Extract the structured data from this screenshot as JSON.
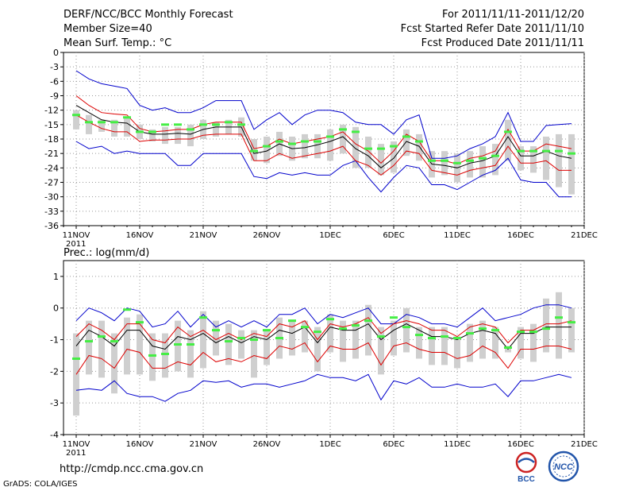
{
  "header": {
    "title": "DERF/NCC/BCC Monthly Forecast",
    "member_size": "Member Size=40",
    "variable": "Mean Surf. Temp.: °C",
    "period": "For 2011/11/11-2011/12/20",
    "started": "Fcst Started Refer Date 2011/11/10",
    "produced": "Fcst Produced Date 2011/11/11"
  },
  "footer": {
    "url": "http://cmdp.ncc.cma.gov.cn",
    "grads": "GrADS: COLA/IGES",
    "logo_bcc": "BCC",
    "logo_ncc": "NCC"
  },
  "colors": {
    "box": "#cfcfcf",
    "envelope": "#0000cc",
    "spread": "#dd0000",
    "mean": "#000000",
    "obs": "#44ee44",
    "grid": "#999999"
  },
  "chart_data": [
    {
      "type": "line",
      "title": "Mean Surf. Temp.: °C",
      "xlabel": "",
      "ylabel": "°C",
      "x_ticks": [
        {
          "day": 0,
          "label": "11NOV"
        },
        {
          "day": 5,
          "label": "16NOV"
        },
        {
          "day": 10,
          "label": "21NOV"
        },
        {
          "day": 15,
          "label": "26NOV"
        },
        {
          "day": 20,
          "label": "1DEC"
        },
        {
          "day": 25,
          "label": "6DEC"
        },
        {
          "day": 30,
          "label": "11DEC"
        },
        {
          "day": 35,
          "label": "16DEC"
        },
        {
          "day": 40,
          "label": "21DEC"
        }
      ],
      "year_label": "2011",
      "xlim": [
        -1,
        40
      ],
      "ylim": [
        -36,
        0
      ],
      "y_ticks": [
        0,
        -3,
        -6,
        -9,
        -12,
        -15,
        -18,
        -21,
        -24,
        -27,
        -30,
        -33,
        -36
      ],
      "series": [
        {
          "name": "ensemble max",
          "values": [
            -3.8,
            -5.5,
            -6.5,
            -7,
            -7.5,
            -11,
            -12,
            -11.5,
            -12.5,
            -12.5,
            -11.5,
            -10,
            -10,
            -10,
            -16,
            -14,
            -12.5,
            -15,
            -13,
            -12,
            -12,
            -12.5,
            -14.5,
            -15,
            -15,
            -17,
            -14,
            -13,
            -22,
            -22,
            -21.5,
            -20,
            -19,
            -17.5,
            -12.5,
            -18.5,
            -18.5,
            -15.2,
            -15,
            -14.8
          ]
        },
        {
          "name": "upper spread",
          "values": [
            -9,
            -11,
            -12.5,
            -12.8,
            -13,
            -15.8,
            -16.5,
            -16.3,
            -16,
            -16,
            -15,
            -14.5,
            -14.5,
            -14.5,
            -20,
            -19.5,
            -18,
            -19,
            -18.5,
            -18,
            -17.5,
            -16.5,
            -19,
            -20.5,
            -23,
            -20.5,
            -17,
            -18.5,
            -22.5,
            -22.5,
            -23.2,
            -22,
            -21.5,
            -20.5,
            -16,
            -20.5,
            -20.5,
            -19,
            -19.5,
            -20
          ]
        },
        {
          "name": "ensemble mean",
          "values": [
            -11,
            -12.5,
            -14,
            -14.5,
            -14.7,
            -16.5,
            -17,
            -17,
            -16.8,
            -17,
            -16,
            -15.5,
            -15.5,
            -15.5,
            -21,
            -20.5,
            -19,
            -20,
            -19.8,
            -19.2,
            -18.5,
            -17.5,
            -20,
            -21.5,
            -24,
            -22,
            -18.5,
            -19.5,
            -23.2,
            -23.5,
            -24,
            -23,
            -22.5,
            -21.5,
            -17.5,
            -21.5,
            -21.5,
            -20.5,
            -21.5,
            -22
          ]
        },
        {
          "name": "lower spread",
          "values": [
            -13,
            -14.5,
            -15.8,
            -16.5,
            -16.5,
            -18.5,
            -18.2,
            -18.2,
            -18,
            -18,
            -17.2,
            -17,
            -17,
            -17,
            -22.5,
            -22.5,
            -21,
            -22,
            -21.5,
            -21,
            -20.5,
            -19.5,
            -22.5,
            -23.5,
            -25.5,
            -23.5,
            -20.5,
            -21,
            -24.5,
            -25,
            -25.5,
            -24.5,
            -24,
            -23.5,
            -19.5,
            -23,
            -23,
            -22.5,
            -24.5,
            -24.5
          ]
        },
        {
          "name": "ensemble min",
          "values": [
            -18.5,
            -20,
            -19.5,
            -21,
            -20.5,
            -21,
            -21,
            -21,
            -23.5,
            -23.5,
            -21,
            -21,
            -21,
            -21,
            -25.8,
            -26.2,
            -25,
            -25.5,
            -25,
            -25.5,
            -25.5,
            -23.5,
            -22.5,
            -26,
            -29,
            -26,
            -23.5,
            -24,
            -27.5,
            -27.5,
            -28.5,
            -27,
            -25.5,
            -24.5,
            -22,
            -26.5,
            -27,
            -27,
            -30,
            -30
          ]
        },
        {
          "name": "box top",
          "values": [
            -12,
            -13,
            -14,
            -14,
            -13.5,
            -15,
            -16,
            -15.5,
            -15.5,
            -15,
            -14,
            -14.5,
            -14,
            -13.5,
            -18,
            -17.5,
            -16.5,
            -17.5,
            -17,
            -17,
            -16,
            -15,
            -15.5,
            -17.5,
            -19,
            -18.5,
            -16,
            -17,
            -20.5,
            -20.5,
            -21,
            -20.5,
            -19.5,
            -19,
            -14,
            -19.5,
            -19.5,
            -17.5,
            -17,
            -17
          ]
        },
        {
          "name": "box bottom",
          "values": [
            -16,
            -17,
            -16.5,
            -17.5,
            -17.5,
            -18,
            -18.5,
            -19,
            -19,
            -19.5,
            -18,
            -17.5,
            -17,
            -17.5,
            -22.5,
            -23,
            -21.5,
            -22.5,
            -22,
            -22,
            -22.5,
            -21,
            -24,
            -24,
            -25.5,
            -25,
            -21.5,
            -22.5,
            -26,
            -25.5,
            -27,
            -26,
            -26,
            -25.5,
            -22.5,
            -24.5,
            -25,
            -26.5,
            -28,
            -29.5
          ]
        },
        {
          "name": "observation",
          "values": [
            -13,
            -14.5,
            -14.5,
            -14.5,
            -13.5,
            -16.5,
            -16.5,
            -15,
            -15,
            -16,
            -15,
            -15,
            -14.5,
            -15,
            -20.5,
            -19.5,
            -18.5,
            -19,
            -18.5,
            -18.5,
            -17.5,
            -16,
            -16.5,
            -20,
            -20,
            -19.5,
            -17.5,
            -18.5,
            -22.5,
            -22.5,
            -23,
            -22.5,
            -22,
            -21.5,
            -16.5,
            -20.5,
            -20.5,
            -20.5,
            -20.5,
            -21
          ]
        }
      ]
    },
    {
      "type": "line",
      "title": "Prec.: log(mm/d)",
      "xlabel": "",
      "ylabel": "log(mm/d)",
      "x_ticks": [
        {
          "day": 0,
          "label": "11NOV"
        },
        {
          "day": 5,
          "label": "16NOV"
        },
        {
          "day": 10,
          "label": "21NOV"
        },
        {
          "day": 15,
          "label": "26NOV"
        },
        {
          "day": 20,
          "label": "1DEC"
        },
        {
          "day": 25,
          "label": "6DEC"
        },
        {
          "day": 30,
          "label": "11DEC"
        },
        {
          "day": 35,
          "label": "16DEC"
        },
        {
          "day": 40,
          "label": "21DEC"
        }
      ],
      "year_label": "2011",
      "xlim": [
        -1,
        40
      ],
      "ylim": [
        -4,
        1.5
      ],
      "y_ticks": [
        1,
        0,
        -1,
        -2,
        -3,
        -4
      ],
      "series": [
        {
          "name": "ensemble max",
          "values": [
            -0.4,
            0,
            -0.15,
            -0.4,
            0,
            -0.1,
            -0.6,
            -0.5,
            -0.1,
            -0.6,
            -0.2,
            -0.6,
            -0.4,
            -0.6,
            -0.4,
            -0.6,
            -0.2,
            -0.2,
            0,
            -0.5,
            -0.2,
            -0.3,
            -0.15,
            0,
            -0.5,
            -0.5,
            -0.2,
            -0.3,
            -0.5,
            -0.5,
            -0.6,
            -0.3,
            0,
            -0.4,
            -0.3,
            -0.2,
            0,
            0.1,
            0.1,
            0
          ]
        },
        {
          "name": "upper spread",
          "values": [
            -0.9,
            -0.5,
            -0.7,
            -1,
            -0.5,
            -0.5,
            -1,
            -1.1,
            -0.6,
            -0.9,
            -0.7,
            -1.0,
            -0.8,
            -1.0,
            -0.8,
            -0.9,
            -0.5,
            -0.6,
            -0.4,
            -1,
            -0.5,
            -0.6,
            -0.5,
            -0.3,
            -0.8,
            -0.5,
            -0.4,
            -0.5,
            -0.7,
            -0.7,
            -0.9,
            -0.6,
            -0.5,
            -0.6,
            -1.1,
            -0.7,
            -0.7,
            -0.5,
            -0.5,
            -0.4
          ]
        },
        {
          "name": "ensemble mean",
          "values": [
            -1.2,
            -0.7,
            -0.9,
            -1.2,
            -0.7,
            -0.7,
            -1.2,
            -1.3,
            -0.9,
            -1.0,
            -0.8,
            -1.1,
            -0.9,
            -1.1,
            -0.9,
            -1.0,
            -0.7,
            -0.8,
            -0.6,
            -1.1,
            -0.6,
            -0.7,
            -0.7,
            -0.5,
            -1.0,
            -0.7,
            -0.5,
            -0.7,
            -0.9,
            -0.9,
            -1.0,
            -0.8,
            -0.7,
            -0.8,
            -1.3,
            -0.8,
            -0.8,
            -0.6,
            -0.6,
            -0.6
          ]
        },
        {
          "name": "lower spread",
          "values": [
            -2.1,
            -1.5,
            -1.6,
            -1.9,
            -1.3,
            -1.4,
            -1.9,
            -1.9,
            -1.7,
            -1.8,
            -1.4,
            -1.7,
            -1.6,
            -1.7,
            -1.5,
            -1.6,
            -1.2,
            -1.3,
            -1.1,
            -1.7,
            -1.2,
            -1.3,
            -1.3,
            -1.1,
            -1.8,
            -1.2,
            -1.1,
            -1.3,
            -1.4,
            -1.4,
            -1.6,
            -1.5,
            -1.2,
            -1.4,
            -1.9,
            -1.3,
            -1.3,
            -1.2,
            -1.2,
            -1.3
          ]
        },
        {
          "name": "ensemble min",
          "values": [
            -2.6,
            -2.55,
            -2.6,
            -2.3,
            -2.7,
            -2.8,
            -2.8,
            -2.95,
            -2.7,
            -2.6,
            -2.3,
            -2.35,
            -2.3,
            -2.5,
            -2.4,
            -2.4,
            -2.5,
            -2.4,
            -2.3,
            -2.1,
            -2.2,
            -2.2,
            -2.3,
            -2.1,
            -2.9,
            -2.3,
            -2.4,
            -2.2,
            -2.5,
            -2.5,
            -2.4,
            -2.5,
            -2.5,
            -2.4,
            -2.8,
            -2.3,
            -2.3,
            -2.2,
            -2.1,
            -2.2
          ]
        },
        {
          "name": "box top",
          "values": [
            -0.8,
            -0.4,
            -0.4,
            -0.8,
            -0.3,
            -0.2,
            -0.8,
            -0.8,
            -0.4,
            -0.7,
            -0.1,
            -0.4,
            -0.5,
            -0.7,
            -0.7,
            -0.7,
            -0.3,
            -0.4,
            -0.4,
            -0.6,
            -0.2,
            -0.4,
            -0.4,
            0.1,
            -0.6,
            -0.4,
            0,
            -0.6,
            -0.6,
            -0.6,
            -0.9,
            -0.5,
            -0.4,
            -0.6,
            -1.2,
            -0.6,
            -0.5,
            0.3,
            0.5,
            0
          ]
        },
        {
          "name": "box bottom",
          "values": [
            -3.4,
            -2.1,
            -2.2,
            -2.7,
            -2.1,
            -2.1,
            -2.3,
            -2.2,
            -2.0,
            -2.2,
            -1.9,
            -1.5,
            -1.8,
            -1.6,
            -2.2,
            -1.8,
            -1.6,
            -1.5,
            -1.4,
            -2.0,
            -1.4,
            -1.7,
            -1.6,
            -1.5,
            -2.1,
            -1.5,
            -1.4,
            -1.6,
            -1.8,
            -1.8,
            -1.9,
            -1.7,
            -1.6,
            -1.6,
            -1.4,
            -1.6,
            -1.7,
            -1.4,
            -1.6,
            -1.4
          ]
        },
        {
          "name": "observation",
          "values": [
            -1.6,
            -1.05,
            -0.9,
            -1.05,
            -0.05,
            -0.45,
            -1.5,
            -1.45,
            -1.15,
            -1.15,
            -0.3,
            -0.7,
            -1.05,
            -0.95,
            -1.0,
            -0.7,
            -0.95,
            -0.4,
            -0.6,
            -0.75,
            -0.35,
            -0.65,
            -0.55,
            -0.4,
            -0.9,
            -0.3,
            -0.6,
            -0.85,
            -0.95,
            -0.9,
            -0.95,
            -0.8,
            -0.65,
            -0.7,
            -1.25,
            -0.75,
            -0.75,
            -0.65,
            -0.3,
            -0.45
          ]
        }
      ]
    }
  ]
}
